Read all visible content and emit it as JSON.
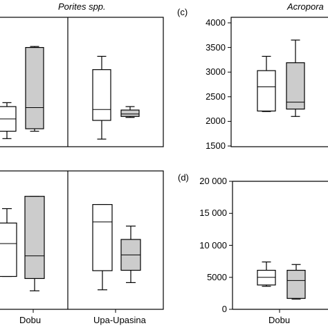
{
  "chart_data": [
    {
      "id": "panel-top-left",
      "type": "box",
      "title": "Porites spp.",
      "groups": [
        "",
        "Upa-Upasina"
      ],
      "boxes": [
        {
          "group": 0,
          "fill": "#ffffff",
          "whisker_low": 1650,
          "q1": 1800,
          "median": 2050,
          "q3": 2300,
          "whisker_high": 2380
        },
        {
          "group": 0,
          "fill": "#cccccc",
          "whisker_low": 1800,
          "q1": 1850,
          "median": 2280,
          "q3": 3500,
          "whisker_high": 3520
        },
        {
          "group": 1,
          "fill": "#ffffff",
          "whisker_low": 1640,
          "q1": 2020,
          "median": 2240,
          "q3": 3050,
          "whisker_high": 3320
        },
        {
          "group": 1,
          "fill": "#cccccc",
          "whisker_low": 2080,
          "q1": 2100,
          "median": 2150,
          "q3": 2230,
          "whisker_high": 2300
        }
      ]
    },
    {
      "id": "panel-top-right",
      "type": "box",
      "panel_label": "(c)",
      "title": "Acropora",
      "groups": [
        "Dobu"
      ],
      "yticks": [
        "4000",
        "3500",
        "3000",
        "2500",
        "2000",
        "1500"
      ],
      "ylim": [
        1500,
        4000
      ],
      "boxes": [
        {
          "group": 0,
          "fill": "#ffffff",
          "whisker_low": 2200,
          "q1": 2210,
          "median": 2700,
          "q3": 3030,
          "whisker_high": 3320
        },
        {
          "group": 0,
          "fill": "#cccccc",
          "whisker_low": 2100,
          "q1": 2250,
          "median": 2390,
          "q3": 3190,
          "whisker_high": 3650
        }
      ]
    },
    {
      "id": "panel-bottom-left",
      "type": "box",
      "groups": [
        "Dobu",
        "Upa-Upasina"
      ],
      "boxes": [
        {
          "group": 0,
          "fill": "#ffffff",
          "whisker_low": 1600,
          "q1": 1600,
          "median": 3200,
          "q3": 4200,
          "whisker_high": 4900
        },
        {
          "group": 0,
          "fill": "#cccccc",
          "whisker_low": 900,
          "q1": 1500,
          "median": 2600,
          "q3": 5500,
          "whisker_high": 5500
        },
        {
          "group": 1,
          "fill": "#ffffff",
          "whisker_low": 950,
          "q1": 1880,
          "median": 4250,
          "q3": 5100,
          "whisker_high": 5100
        },
        {
          "group": 1,
          "fill": "#cccccc",
          "whisker_low": 1300,
          "q1": 1900,
          "median": 2650,
          "q3": 3400,
          "whisker_high": 4050
        }
      ]
    },
    {
      "id": "panel-bottom-right",
      "type": "box",
      "panel_label": "(d)",
      "groups": [
        "Dobu"
      ],
      "yticks": [
        "20 000",
        "15 000",
        "10 000",
        "5000",
        "0"
      ],
      "ylim": [
        0,
        20000
      ],
      "boxes": [
        {
          "group": 0,
          "fill": "#ffffff",
          "whisker_low": 3600,
          "q1": 3800,
          "median": 5000,
          "q3": 6100,
          "whisker_high": 7400
        },
        {
          "group": 0,
          "fill": "#cccccc",
          "whisker_low": 1600,
          "q1": 1700,
          "median": 4500,
          "q3": 6100,
          "whisker_high": 7000
        }
      ]
    }
  ]
}
